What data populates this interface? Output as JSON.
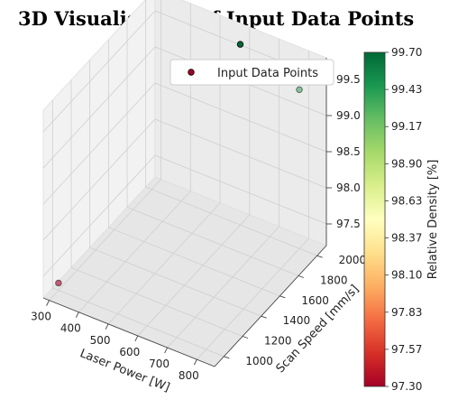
{
  "chart_data": {
    "type": "scatter3d",
    "title": "3D Visualisation of Input Data Points",
    "xlabel": "Laser Power [W]",
    "ylabel": "Scan Speed [mm/s]",
    "zlabel": "",
    "colorbar_label": "Relative Density [%]",
    "xlim": [
      280,
      860
    ],
    "ylim": [
      900,
      2100
    ],
    "zlim": [
      97.2,
      99.8
    ],
    "x_ticks": [
      "300",
      "400",
      "500",
      "600",
      "700",
      "800"
    ],
    "y_ticks": [
      "1000",
      "1200",
      "1400",
      "1600",
      "1800",
      "2000"
    ],
    "z_ticks": [
      "97.5",
      "98.0",
      "98.5",
      "99.0",
      "99.5"
    ],
    "colorbar_ticks": [
      "99.70",
      "99.43",
      "99.17",
      "98.90",
      "98.63",
      "98.37",
      "98.10",
      "97.83",
      "97.57",
      "97.30"
    ],
    "color_range": [
      97.3,
      99.7
    ],
    "colormap": [
      "#a50026",
      "#d73027",
      "#f46d43",
      "#fdae61",
      "#fee08b",
      "#ffffbf",
      "#d9ef8b",
      "#a6d96a",
      "#66bd63",
      "#1a9850",
      "#006837"
    ],
    "legend": {
      "label": "Input Data Points",
      "position": "upper right"
    },
    "grid": true,
    "points": [
      {
        "x": 300,
        "y": 1000,
        "z": 97.3,
        "c": 97.3
      },
      {
        "x": 600,
        "y": 2000,
        "z": 99.7,
        "c": 99.7
      },
      {
        "x": 800,
        "y": 2000,
        "z": 99.4,
        "c": 99.4
      }
    ]
  }
}
